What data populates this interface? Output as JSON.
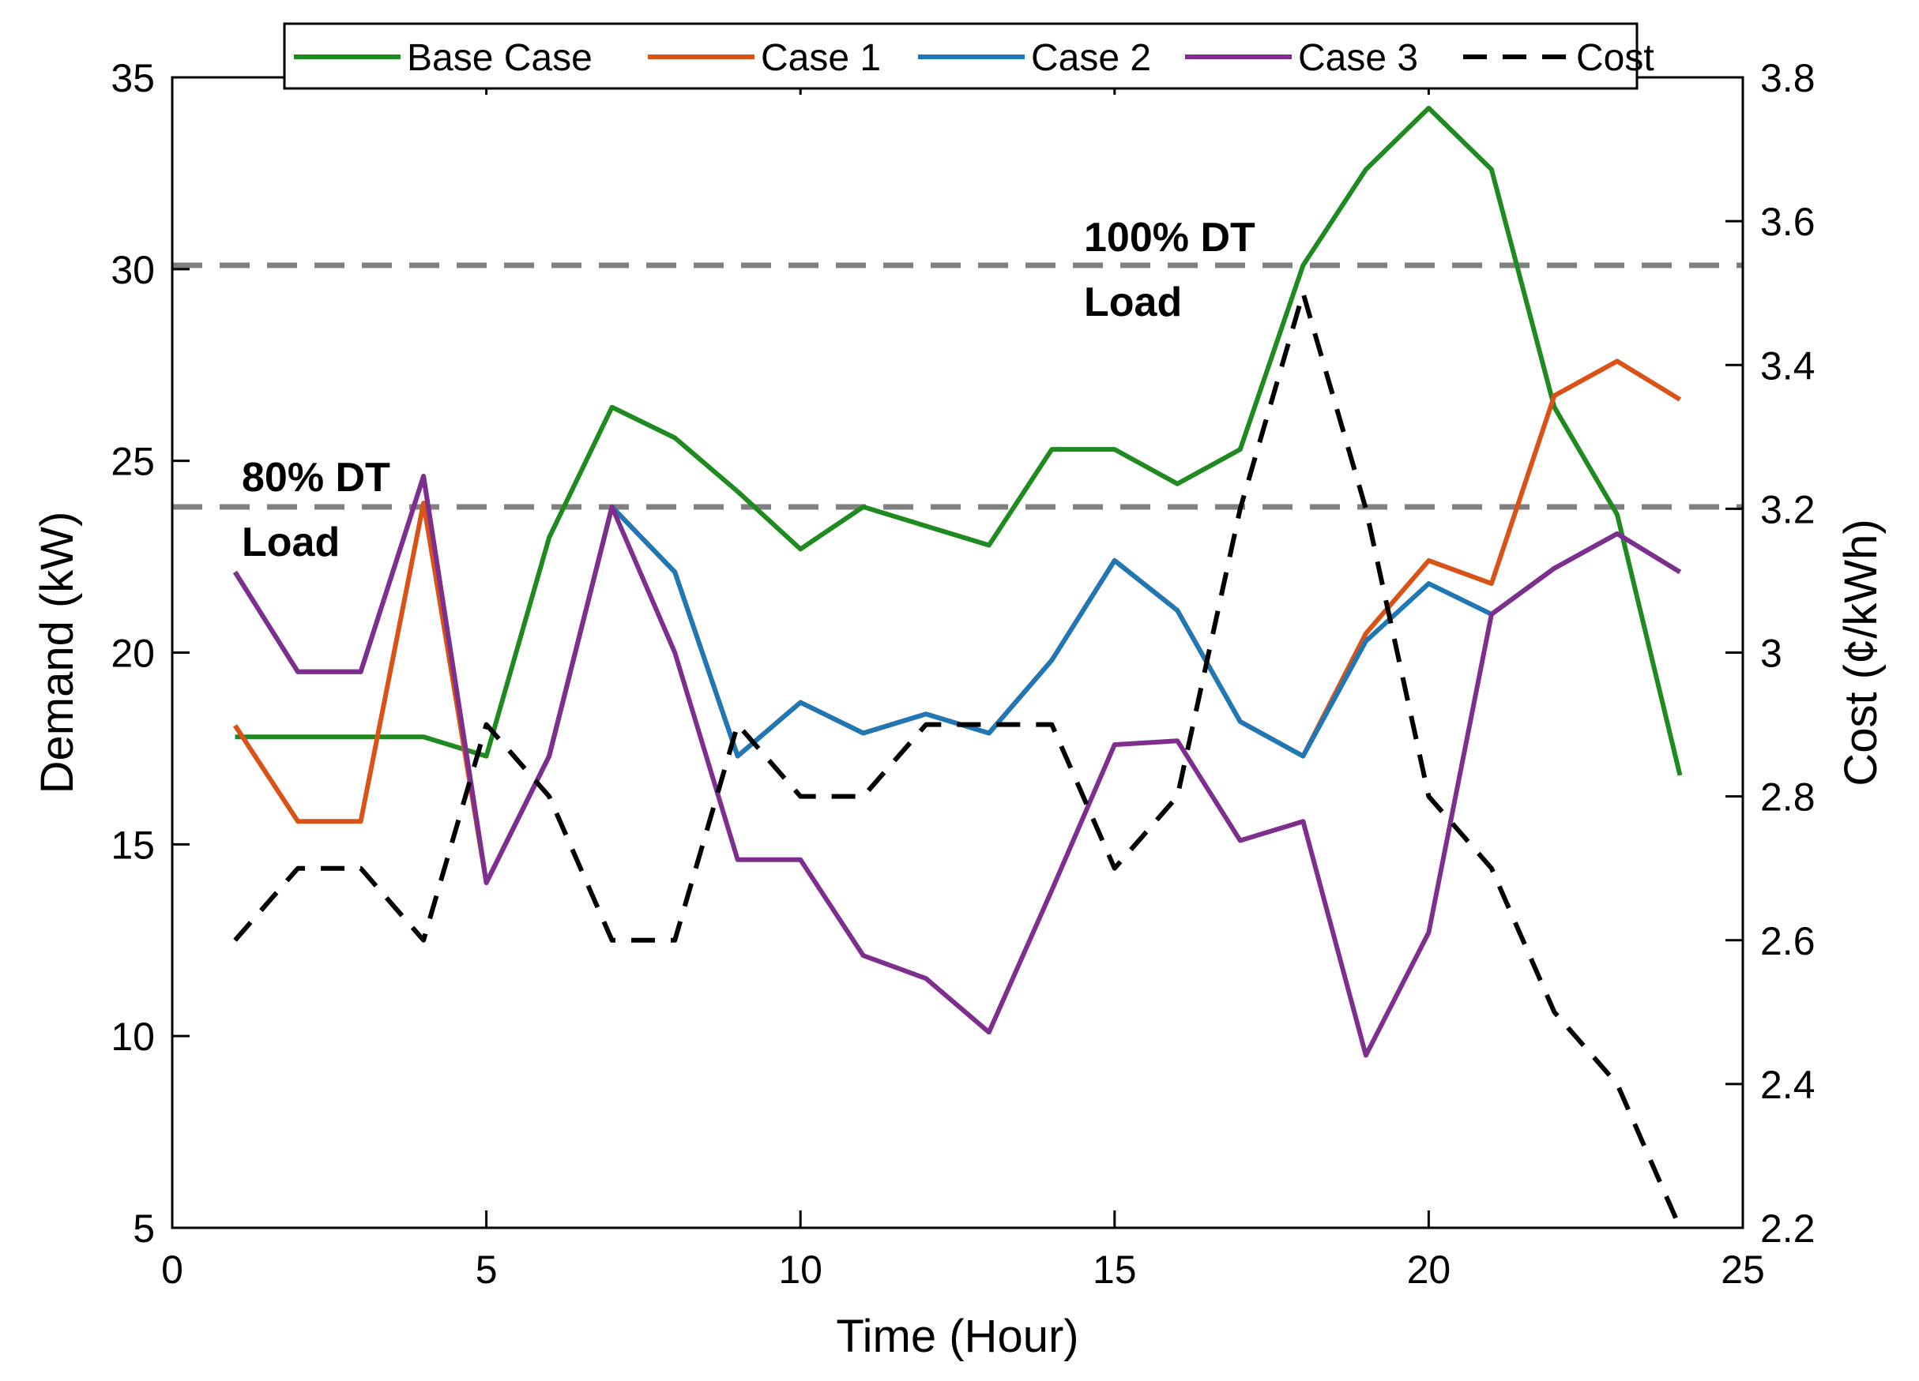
{
  "chart_data": {
    "type": "line",
    "xlabel": "Time (Hour)",
    "ylabel": "Demand (kW)",
    "y2label": "Cost (¢/kWh)",
    "xlim": [
      0,
      25
    ],
    "ylim": [
      5,
      35
    ],
    "y2lim": [
      2.2,
      3.8
    ],
    "xticks": [
      "0",
      "5",
      "10",
      "15",
      "20",
      "25"
    ],
    "yticks": [
      "5",
      "10",
      "15",
      "20",
      "25",
      "30",
      "35"
    ],
    "y2ticks": [
      "2.2",
      "2.4",
      "2.6",
      "2.8",
      "3",
      "3.2",
      "3.4",
      "3.6",
      "3.8"
    ],
    "x": [
      1,
      2,
      3,
      4,
      5,
      6,
      7,
      8,
      9,
      10,
      11,
      12,
      13,
      14,
      15,
      16,
      17,
      18,
      19,
      20,
      21,
      22,
      23,
      24
    ],
    "series": [
      {
        "name": "Base Case",
        "color": "#1f8a1f",
        "axis": "left",
        "dash": "solid",
        "values": [
          17.8,
          17.8,
          17.8,
          17.8,
          17.3,
          23.0,
          26.4,
          25.6,
          24.2,
          22.7,
          23.8,
          23.3,
          22.8,
          25.3,
          25.3,
          24.4,
          25.3,
          30.1,
          32.6,
          34.2,
          32.6,
          26.4,
          23.6,
          16.8
        ]
      },
      {
        "name": "Case 1",
        "color": "#d95319",
        "axis": "left",
        "dash": "solid",
        "values": [
          18.1,
          15.6,
          15.6,
          23.9,
          14.0,
          17.3,
          23.8,
          22.1,
          17.3,
          18.7,
          17.9,
          18.4,
          17.9,
          19.8,
          22.4,
          21.1,
          18.2,
          17.3,
          20.5,
          22.4,
          21.8,
          26.7,
          27.6,
          26.6
        ]
      },
      {
        "name": "Case 2",
        "color": "#1f77b4",
        "axis": "left",
        "dash": "solid",
        "values": [
          22.1,
          19.5,
          19.5,
          24.6,
          14.0,
          17.3,
          23.8,
          22.1,
          17.3,
          18.7,
          17.9,
          18.4,
          17.9,
          19.8,
          22.4,
          21.1,
          18.2,
          17.3,
          20.3,
          21.8,
          21.0,
          22.2,
          23.1,
          22.1
        ]
      },
      {
        "name": "Case 3",
        "color": "#7e2f8e",
        "axis": "left",
        "dash": "solid",
        "values": [
          22.1,
          19.5,
          19.5,
          24.6,
          14.0,
          17.3,
          23.8,
          20.0,
          14.6,
          14.6,
          12.1,
          11.5,
          10.1,
          13.8,
          17.6,
          17.7,
          15.1,
          15.6,
          9.5,
          12.7,
          21.0,
          22.2,
          23.1,
          22.1
        ]
      },
      {
        "name": "Cost",
        "color": "#000000",
        "axis": "right",
        "dash": "dashed",
        "values": [
          2.6,
          2.7,
          2.7,
          2.6,
          2.9,
          2.8,
          2.6,
          2.6,
          2.9,
          2.8,
          2.8,
          2.9,
          2.9,
          2.9,
          2.7,
          2.8,
          3.2,
          3.5,
          3.2,
          2.8,
          2.7,
          2.5,
          2.4,
          2.2
        ]
      }
    ],
    "reference_lines": [
      {
        "name": "100% DT Load",
        "value": 30.1,
        "label_lines": [
          "100% DT",
          "Load"
        ]
      },
      {
        "name": "80% DT Load",
        "value": 23.8,
        "label_lines": [
          "80% DT",
          "Load"
        ]
      }
    ],
    "ref_color": "#808080",
    "legend": {
      "placement": "top",
      "entries": [
        "Base Case",
        "Case 1",
        "Case 2",
        "Case 3",
        "Cost"
      ]
    }
  }
}
